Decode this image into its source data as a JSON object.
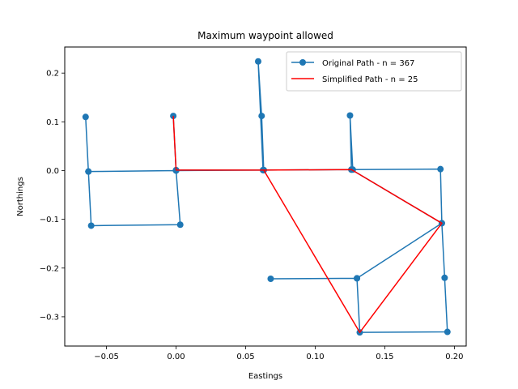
{
  "chart_data": {
    "type": "line",
    "title": "Maximum waypoint allowed",
    "xlabel": "Eastings",
    "ylabel": "Northings",
    "xlim": [
      -0.08,
      0.2085
    ],
    "ylim": [
      -0.36,
      0.2535
    ],
    "xticks": [
      -0.05,
      0.0,
      0.05,
      0.1,
      0.15,
      0.2
    ],
    "xtick_labels": [
      "−0.05",
      "0.00",
      "0.05",
      "0.10",
      "0.15",
      "0.20"
    ],
    "yticks": [
      -0.3,
      -0.2,
      -0.1,
      0.0,
      0.1,
      0.2
    ],
    "ytick_labels": [
      "−0.3",
      "−0.2",
      "−0.1",
      "0.0",
      "0.1",
      "0.2"
    ],
    "grid": false,
    "legend_position": "upper right",
    "series": [
      {
        "name": "Original Path - n = 367",
        "color": "#1f77b4",
        "marker": "circle",
        "x": [
          0.068,
          0.13,
          0.132,
          0.195,
          0.193,
          0.191,
          0.19,
          0.127,
          0.125,
          0.126,
          0.063,
          0.0615,
          0.059,
          0.0625,
          0.0,
          -0.002,
          0.0,
          0.003,
          -0.061,
          -0.063,
          -0.065,
          -0.063,
          0.0,
          0.063,
          0.126,
          0.191,
          0.13
        ],
        "y": [
          -0.222,
          -0.221,
          -0.332,
          -0.331,
          -0.22,
          -0.108,
          0.003,
          0.002,
          0.113,
          0.002,
          0.001,
          0.112,
          0.224,
          0.001,
          0.001,
          0.112,
          0.0,
          -0.111,
          -0.113,
          -0.002,
          0.11,
          -0.002,
          0.0,
          0.001,
          0.002,
          -0.108,
          -0.221
        ]
      },
      {
        "name": "Simplified Path - n = 25",
        "color": "#ff0000",
        "marker": "none",
        "x": [
          -0.002,
          0.0,
          0.063,
          0.126,
          0.191,
          0.132,
          0.063
        ],
        "y": [
          0.112,
          0.001,
          0.001,
          0.002,
          -0.108,
          -0.332,
          0.001
        ]
      }
    ]
  }
}
